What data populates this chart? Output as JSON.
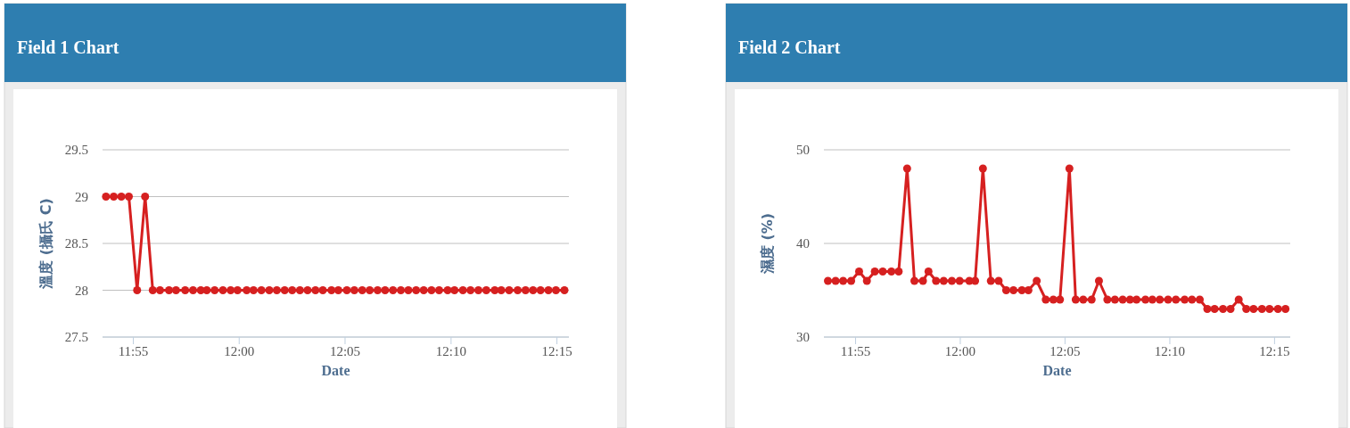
{
  "chart_data": [
    {
      "type": "line",
      "title": "Field 1 Chart",
      "xlabel": "Date",
      "ylabel": "溫度 (攝氏 C)",
      "grid": "y",
      "marker": "circle",
      "line_style": "solid",
      "xlim": [
        11.8925,
        12.2594
      ],
      "ylim": [
        27.5,
        29.5
      ],
      "xticks": [
        {
          "value": 11.9167,
          "label": "11:55"
        },
        {
          "value": 12,
          "label": "12:00"
        },
        {
          "value": 12.0833,
          "label": "12:05"
        },
        {
          "value": 12.1667,
          "label": "12:10"
        },
        {
          "value": 12.25,
          "label": "12:15"
        }
      ],
      "yticks": [
        27.5,
        28,
        28.5,
        29,
        29.5
      ],
      "series": [
        {
          "color": "#d62020",
          "x": [
            11.8952,
            11.9013,
            11.9073,
            11.9132,
            11.9197,
            11.926,
            11.932,
            11.9377,
            11.9448,
            11.9503,
            11.9575,
            11.9637,
            11.9698,
            11.9745,
            11.9807,
            11.9872,
            11.9933,
            11.9987,
            12.0059,
            12.0113,
            12.0175,
            12.0237,
            12.0296,
            12.0358,
            12.0417,
            12.0478,
            12.0538,
            12.06,
            12.0658,
            12.0726,
            12.078,
            12.0847,
            12.0906,
            12.0968,
            12.1027,
            12.1089,
            12.1148,
            12.121,
            12.1272,
            12.1331,
            12.1392,
            12.1452,
            12.1513,
            12.1573,
            12.164,
            12.1694,
            12.176,
            12.182,
            12.1882,
            12.1944,
            12.2011,
            12.2062,
            12.2124,
            12.2191,
            12.2253,
            12.2312,
            12.2371,
            12.2433,
            12.2492,
            12.2559
          ],
          "values": [
            29,
            29,
            29,
            29,
            28,
            29,
            28,
            28,
            28,
            28,
            28,
            28,
            28,
            28,
            28,
            28,
            28,
            28,
            28,
            28,
            28,
            28,
            28,
            28,
            28,
            28,
            28,
            28,
            28,
            28,
            28,
            28,
            28,
            28,
            28,
            28,
            28,
            28,
            28,
            28,
            28,
            28,
            28,
            28,
            28,
            28,
            28,
            28,
            28,
            28,
            28,
            28,
            28,
            28,
            28,
            28,
            28,
            28,
            28,
            28
          ]
        }
      ]
    },
    {
      "type": "line",
      "title": "Field 2 Chart",
      "xlabel": "Date",
      "ylabel": "濕度 (%)",
      "grid": "y",
      "marker": "circle",
      "line_style": "solid",
      "xlim": [
        11.8915,
        12.2625
      ],
      "ylim": [
        30,
        50
      ],
      "xticks": [
        {
          "value": 11.9167,
          "label": "11:55"
        },
        {
          "value": 12,
          "label": "12:00"
        },
        {
          "value": 12.0833,
          "label": "12:05"
        },
        {
          "value": 12.1667,
          "label": "12:10"
        },
        {
          "value": 12.25,
          "label": "12:15"
        }
      ],
      "yticks": [
        30,
        40,
        50
      ],
      "series": [
        {
          "color": "#d62020",
          "x": [
            11.8947,
            11.9008,
            11.9068,
            11.9132,
            11.9195,
            11.9257,
            11.932,
            11.9383,
            11.9452,
            11.951,
            11.9577,
            11.9635,
            11.9703,
            11.9747,
            11.9807,
            11.9868,
            11.9933,
            11.9995,
            12.0072,
            12.0118,
            12.018,
            12.0243,
            12.0305,
            12.0365,
            12.0423,
            12.049,
            12.0542,
            12.0608,
            12.068,
            12.074,
            12.0793,
            12.0868,
            12.0918,
            12.0978,
            12.1045,
            12.1103,
            12.117,
            12.123,
            12.1292,
            12.135,
            12.1402,
            12.1473,
            12.1528,
            12.1587,
            12.1653,
            12.1715,
            12.1785,
            12.1843,
            12.1905,
            12.1965,
            12.2023,
            12.209,
            12.215,
            12.2215,
            12.2275,
            12.2333,
            12.24,
            12.246,
            12.2527,
            12.2587
          ],
          "values": [
            36,
            36,
            36,
            36,
            37,
            36,
            37,
            37,
            37,
            37,
            48,
            36,
            36,
            37,
            36,
            36,
            36,
            36,
            36,
            36,
            48,
            36,
            36,
            35,
            35,
            35,
            35,
            36,
            34,
            34,
            34,
            48,
            34,
            34,
            34,
            36,
            34,
            34,
            34,
            34,
            34,
            34,
            34,
            34,
            34,
            34,
            34,
            34,
            34,
            33,
            33,
            33,
            33,
            34,
            33,
            33,
            33,
            33,
            33,
            33
          ]
        }
      ]
    }
  ]
}
